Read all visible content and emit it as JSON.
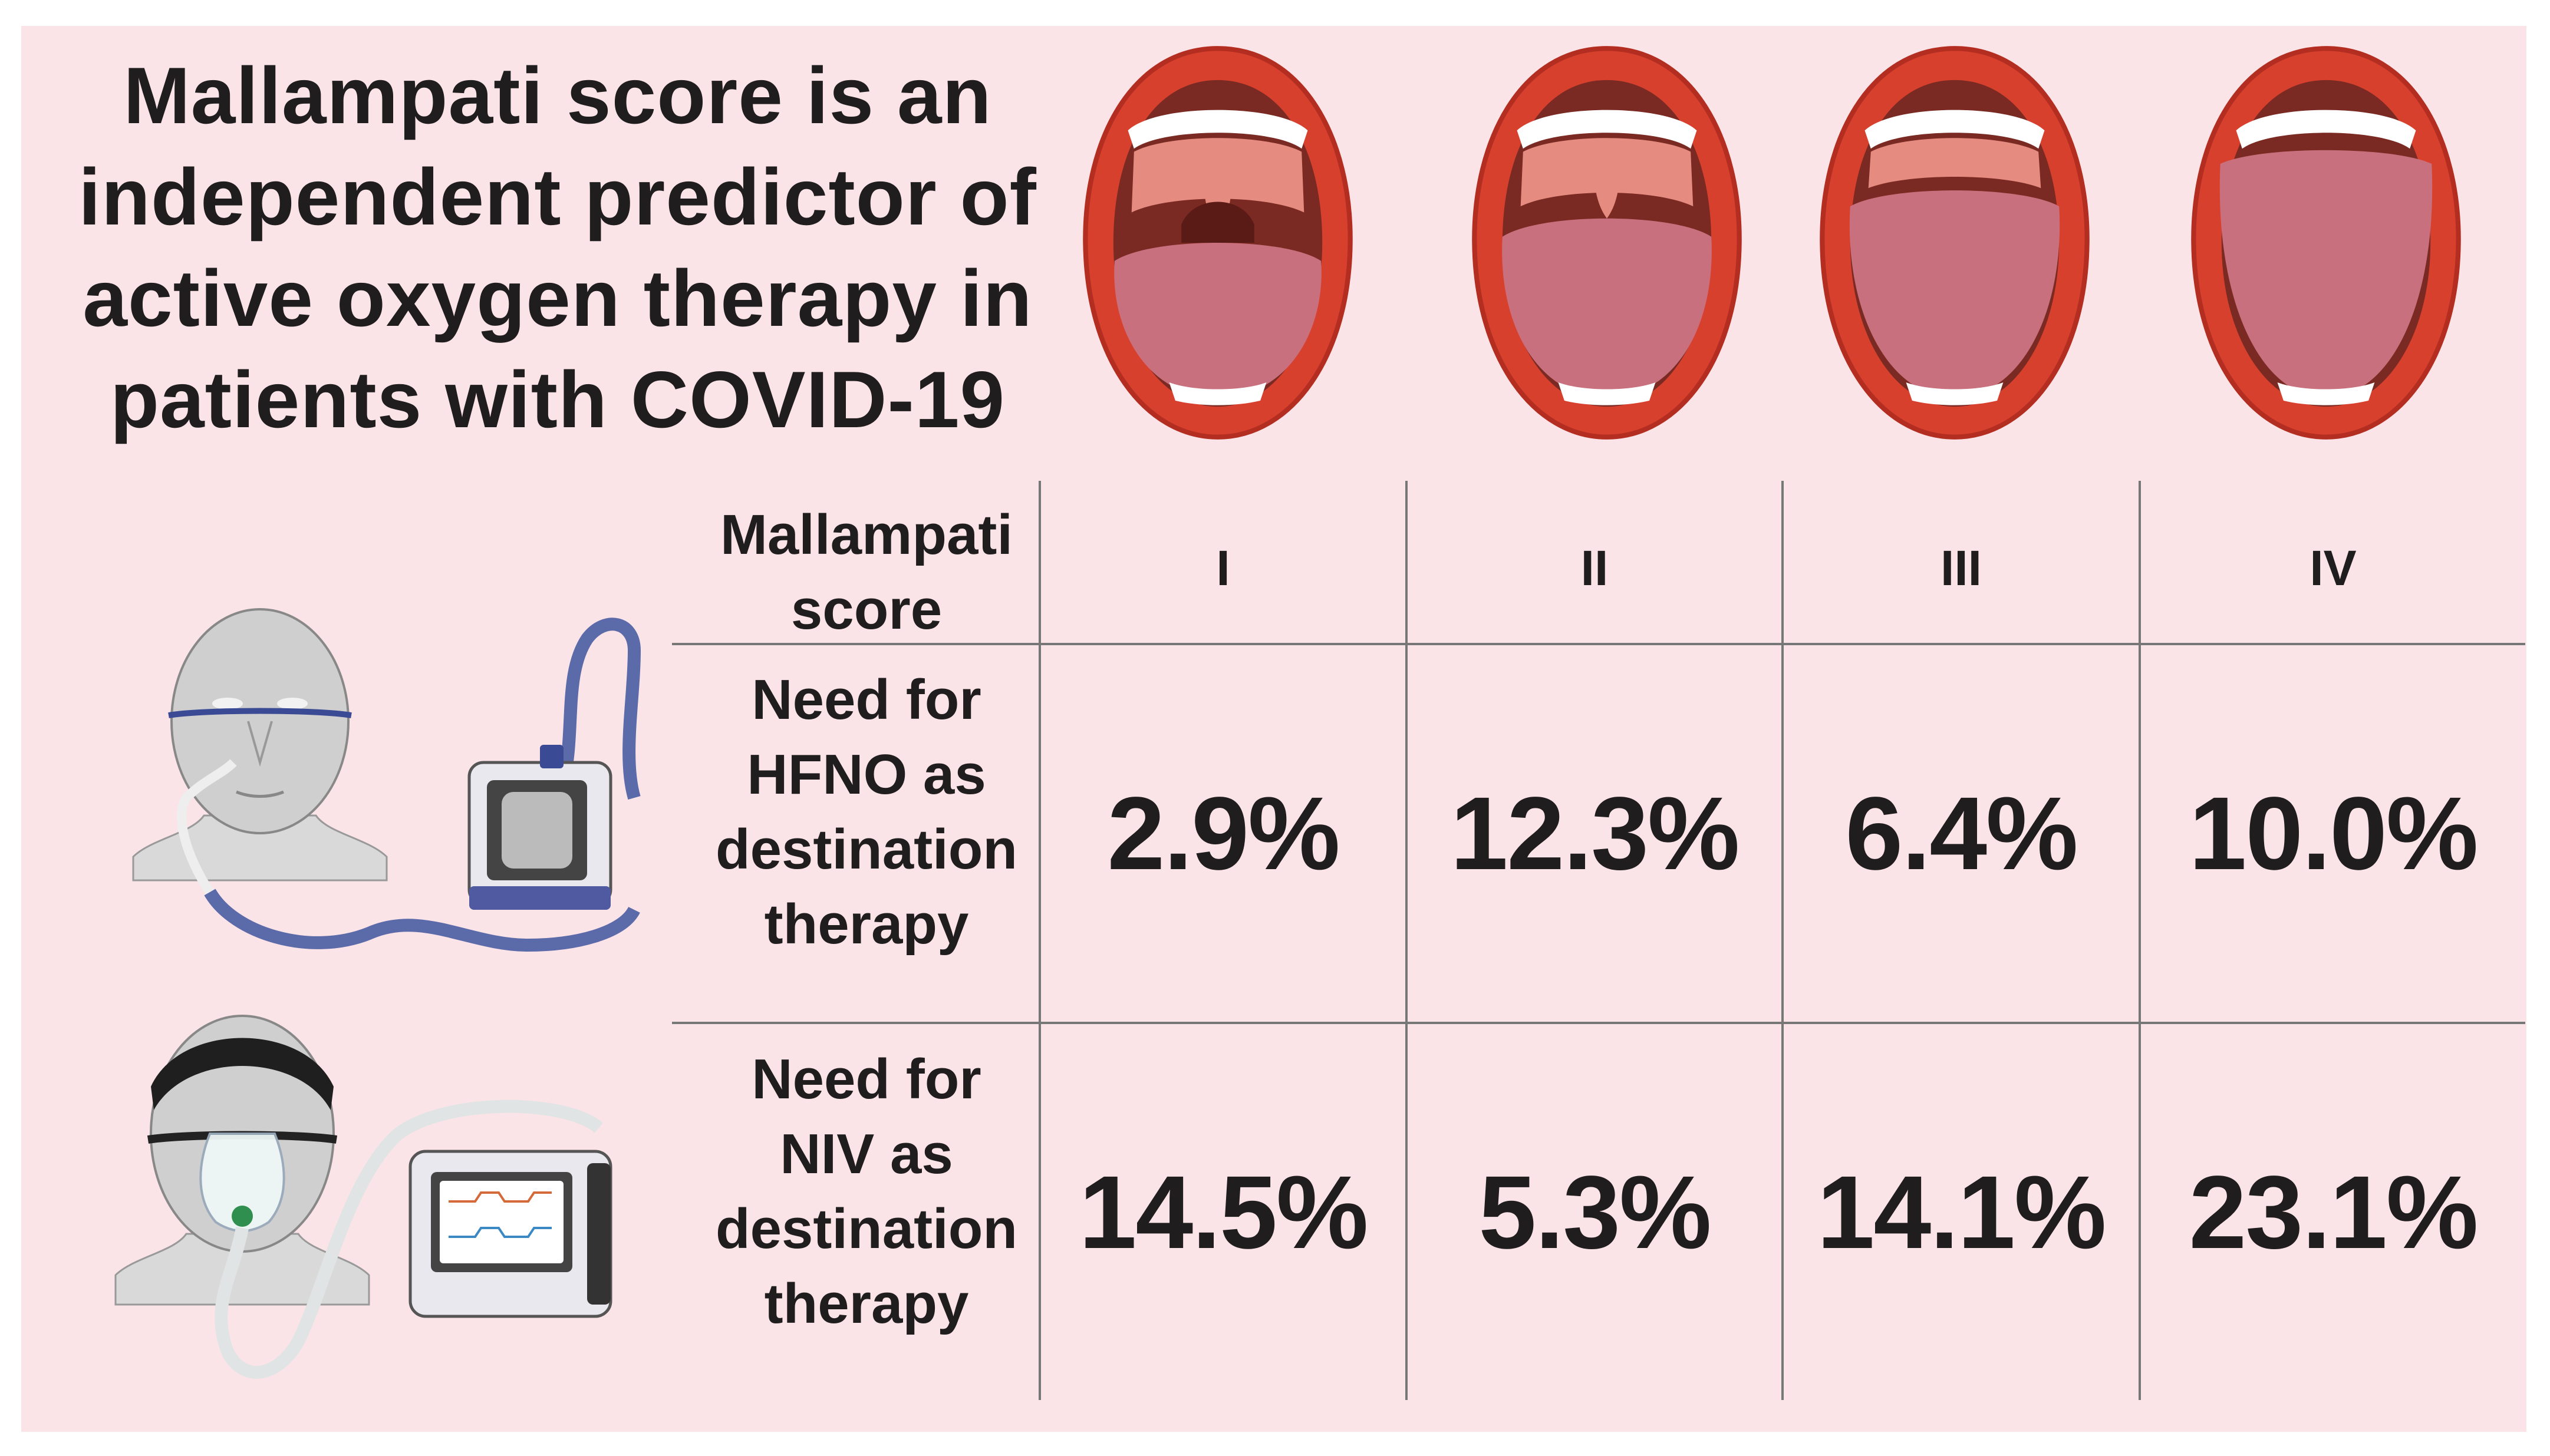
{
  "title": {
    "line1": "Mallampati score is an",
    "line2": "independent predictor of",
    "line3": "active oxygen therapy in",
    "line4": "patients with COVID-19"
  },
  "table": {
    "header_label_line1": "Mallampati",
    "header_label_line2": "score",
    "columns": [
      "I",
      "II",
      "III",
      "IV"
    ],
    "rows": [
      {
        "label_lines": [
          "Need for",
          "HFNO as",
          "destination",
          "therapy"
        ],
        "values": [
          "2.9%",
          "12.3%",
          "6.4%",
          "10.0%"
        ]
      },
      {
        "label_lines": [
          "Need for",
          "NIV as",
          "destination",
          "therapy"
        ],
        "values": [
          "14.5%",
          "5.3%",
          "14.1%",
          "23.1%"
        ]
      }
    ]
  },
  "illustrations": {
    "mouth_classes": [
      "mallampati-class-1",
      "mallampati-class-2",
      "mallampati-class-3",
      "mallampati-class-4"
    ],
    "devices": [
      "hfno-device",
      "niv-device"
    ]
  },
  "colors": {
    "background": "#fbe4e8",
    "text": "#1f1d1e",
    "lips": "#d8402e",
    "tongue": "#c9707e",
    "throat": "#7a2a22"
  }
}
